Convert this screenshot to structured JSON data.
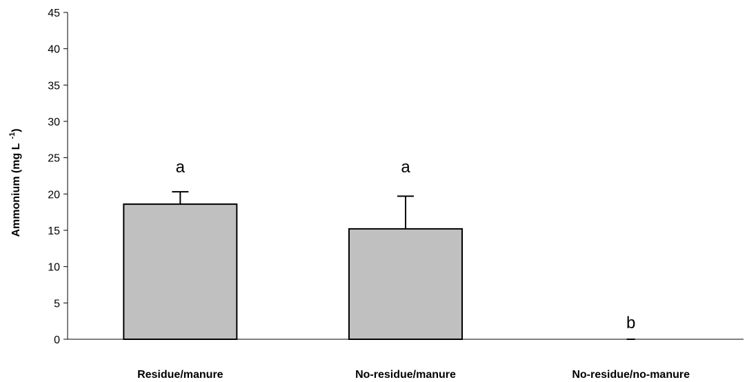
{
  "chart_data": {
    "type": "bar",
    "title": "",
    "xlabel": "",
    "ylabel": "Ammonium (mg L",
    "ylabel_superscript": "-1",
    "ylabel_close": ")",
    "categories": [
      "Residue/manure",
      "No-residue/manure",
      "No-residue/no-manure"
    ],
    "values": [
      18.6,
      15.2,
      0.0
    ],
    "error_upper": [
      1.7,
      4.5,
      0.0
    ],
    "significance_letters": [
      "a",
      "a",
      "b"
    ],
    "ylim": [
      0,
      45
    ],
    "yticks": [
      "0",
      "5",
      "10",
      "15",
      "20",
      "25",
      "30",
      "35",
      "40",
      "45"
    ],
    "grid": false,
    "legend": "none",
    "bar_color": "#c0c0c0",
    "edge_color": "#000000"
  }
}
